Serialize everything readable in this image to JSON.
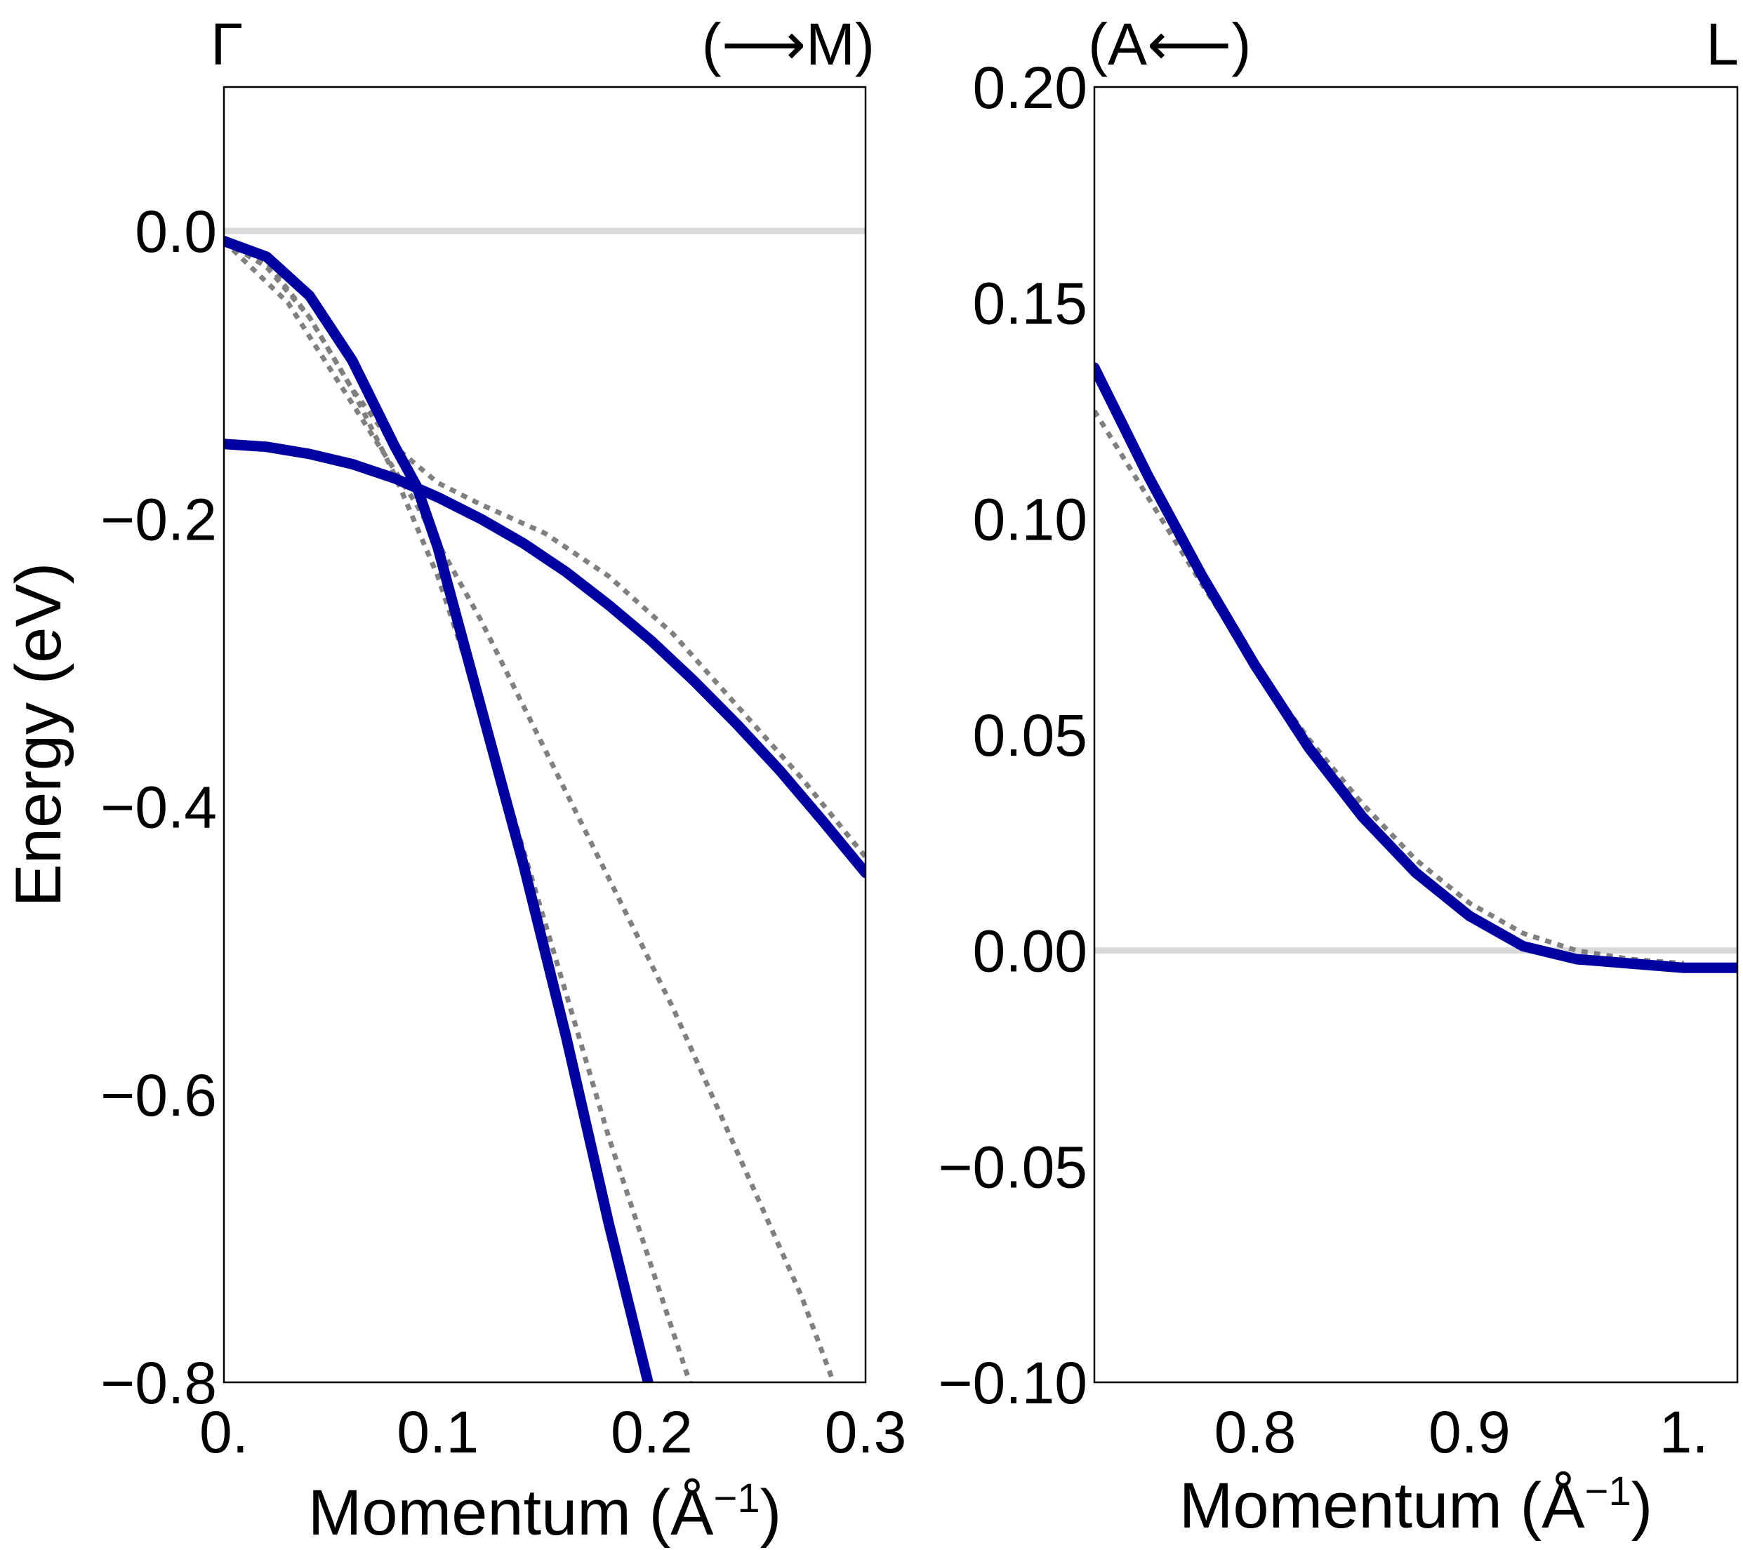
{
  "chart_data": [
    {
      "type": "line",
      "xlabel_main": "Momentum (Å",
      "xlabel_sup": "−1",
      "xlabel_end": ")",
      "ylabel": "Energy (eV)",
      "corner_left": "Γ",
      "corner_right": "(⟶M)",
      "xlim": [
        0.0,
        0.3
      ],
      "ylim": [
        -0.8,
        0.1
      ],
      "xticks": [
        0.0,
        0.1,
        0.2,
        0.3
      ],
      "xtick_labels": [
        "0.",
        "0.1",
        "0.2",
        "0.3"
      ],
      "yticks": [
        -0.8,
        -0.6,
        -0.4,
        -0.2,
        0.0
      ],
      "ytick_labels": [
        "−0.8",
        "−0.6",
        "−0.4",
        "−0.2",
        "0.0"
      ],
      "grid": false,
      "reference_line": {
        "y": 0.0,
        "color": "#d9d9d9"
      },
      "series": [
        {
          "style": "solid",
          "color": "#0000a0",
          "x": [
            0.0,
            0.02,
            0.04,
            0.06,
            0.08,
            0.09,
            0.1,
            0.12,
            0.14,
            0.16,
            0.18,
            0.2
          ],
          "y": [
            -0.007,
            -0.018,
            -0.045,
            -0.09,
            -0.15,
            -0.177,
            -0.22,
            -0.33,
            -0.44,
            -0.56,
            -0.69,
            -0.81
          ]
        },
        {
          "style": "solid",
          "color": "#0000a0",
          "x": [
            0.0,
            0.02,
            0.04,
            0.06,
            0.08,
            0.1,
            0.12,
            0.14,
            0.16,
            0.18,
            0.2,
            0.22,
            0.24,
            0.26,
            0.28,
            0.3
          ],
          "y": [
            -0.148,
            -0.15,
            -0.155,
            -0.162,
            -0.172,
            -0.185,
            -0.2,
            -0.217,
            -0.237,
            -0.26,
            -0.285,
            -0.313,
            -0.343,
            -0.375,
            -0.41,
            -0.446
          ]
        },
        {
          "style": "dotted",
          "color": "#808080",
          "x": [
            0.0,
            0.02,
            0.04,
            0.06,
            0.08,
            0.1,
            0.12,
            0.14,
            0.16,
            0.18,
            0.2,
            0.22
          ],
          "y": [
            -0.007,
            -0.022,
            -0.06,
            -0.11,
            -0.17,
            -0.24,
            -0.33,
            -0.43,
            -0.53,
            -0.63,
            -0.72,
            -0.81
          ]
        },
        {
          "style": "dotted",
          "color": "#808080",
          "x": [
            0.0,
            0.03,
            0.06,
            0.09,
            0.12,
            0.15,
            0.18,
            0.21,
            0.24,
            0.27,
            0.3
          ],
          "y": [
            -0.007,
            -0.05,
            -0.12,
            -0.19,
            -0.27,
            -0.36,
            -0.45,
            -0.54,
            -0.64,
            -0.74,
            -0.86
          ]
        },
        {
          "style": "dotted",
          "color": "#808080",
          "x": [
            0.0,
            0.02,
            0.04,
            0.06,
            0.08,
            0.1,
            0.12,
            0.15,
            0.18,
            0.21,
            0.24,
            0.27,
            0.3
          ],
          "y": [
            -0.007,
            -0.025,
            -0.06,
            -0.11,
            -0.15,
            -0.175,
            -0.19,
            -0.21,
            -0.24,
            -0.28,
            -0.33,
            -0.38,
            -0.435
          ]
        }
      ]
    },
    {
      "type": "line",
      "xlabel_main": "Momentum (Å",
      "xlabel_sup": "−1",
      "xlabel_end": ")",
      "ylabel": "",
      "corner_left": "(A⟵)",
      "corner_right": "L",
      "xlim": [
        0.725,
        1.025
      ],
      "ylim": [
        -0.1,
        0.2
      ],
      "xticks": [
        0.8,
        0.9,
        1.0
      ],
      "xtick_labels": [
        "0.8",
        "0.9",
        "1."
      ],
      "yticks": [
        -0.1,
        -0.05,
        0.0,
        0.05,
        0.1,
        0.15,
        0.2
      ],
      "ytick_labels": [
        "−0.10",
        "−0.05",
        "0.00",
        "0.05",
        "0.10",
        "0.15",
        "0.20"
      ],
      "grid": false,
      "reference_line": {
        "y": 0.0,
        "color": "#d9d9d9"
      },
      "series": [
        {
          "style": "solid",
          "color": "#0000a0",
          "x": [
            0.725,
            0.75,
            0.775,
            0.8,
            0.825,
            0.85,
            0.875,
            0.9,
            0.925,
            0.95,
            0.975,
            1.0,
            1.025
          ],
          "y": [
            0.135,
            0.11,
            0.087,
            0.066,
            0.047,
            0.031,
            0.018,
            0.008,
            0.001,
            -0.002,
            -0.003,
            -0.004,
            -0.004
          ]
        },
        {
          "style": "dotted",
          "color": "#808080",
          "x": [
            0.725,
            0.75,
            0.775,
            0.8,
            0.825,
            0.85,
            0.875,
            0.9,
            0.925,
            0.95,
            0.975,
            1.0
          ],
          "y": [
            0.125,
            0.105,
            0.085,
            0.066,
            0.049,
            0.034,
            0.021,
            0.011,
            0.004,
            0.0,
            -0.002,
            -0.003
          ]
        }
      ]
    }
  ]
}
